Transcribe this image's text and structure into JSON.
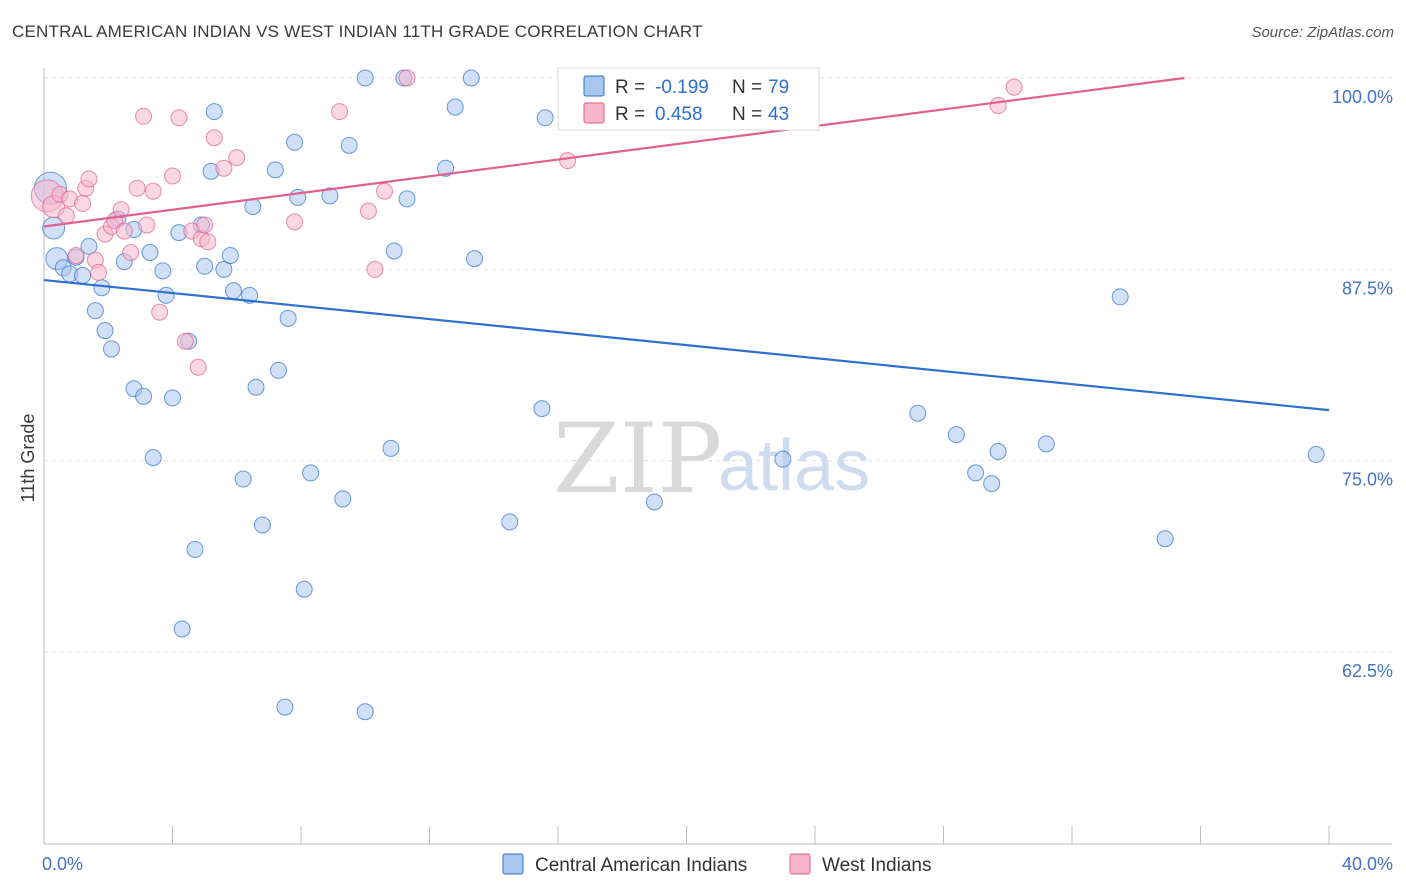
{
  "title": "CENTRAL AMERICAN INDIAN VS WEST INDIAN 11TH GRADE CORRELATION CHART",
  "source": "Source: ZipAtlas.com",
  "watermark": {
    "zip": "ZIP",
    "atlas": "atlas"
  },
  "colors": {
    "blue": "#2f6fce",
    "blue_fill": "#a9c6ee",
    "pink": "#e0608f",
    "pink_fill": "#f5b6ca",
    "tick": "#4472c4"
  },
  "chart_data": {
    "type": "scatter",
    "title": "CENTRAL AMERICAN INDIAN VS WEST INDIAN 11TH GRADE CORRELATION CHART",
    "xlabel": "",
    "ylabel": "11th Grade",
    "xlim": [
      0.0,
      40.0
    ],
    "ylim": [
      50.0,
      101.0
    ],
    "x_ticks": [
      {
        "value": 0.0,
        "label": "0.0%"
      },
      {
        "value": 40.0,
        "label": "40.0%"
      }
    ],
    "y_ticks": [
      {
        "value": 100.0,
        "label": "100.0%"
      },
      {
        "value": 87.5,
        "label": "87.5%"
      },
      {
        "value": 75.0,
        "label": "75.0%"
      },
      {
        "value": 62.5,
        "label": "62.5%"
      }
    ],
    "legend": [
      {
        "r_label": "R =",
        "r_value": "-0.199",
        "n_label": "N =",
        "n_value": "79"
      },
      {
        "r_label": "R =",
        "r_value": "0.458",
        "n_label": "N =",
        "n_value": "43"
      }
    ],
    "series": [
      {
        "name": "Central American Indians",
        "trend": {
          "x": [
            0.0,
            40.0
          ],
          "y": [
            86.8,
            78.3
          ]
        },
        "points": [
          [
            0.2,
            92.8
          ],
          [
            0.3,
            90.2
          ],
          [
            0.4,
            88.2
          ],
          [
            0.6,
            87.6
          ],
          [
            0.8,
            87.2
          ],
          [
            1.0,
            88.3
          ],
          [
            1.2,
            87.1
          ],
          [
            1.4,
            89.0
          ],
          [
            1.6,
            84.8
          ],
          [
            1.8,
            86.3
          ],
          [
            1.9,
            83.5
          ],
          [
            2.1,
            82.3
          ],
          [
            2.3,
            90.8
          ],
          [
            2.5,
            88.0
          ],
          [
            2.8,
            90.1
          ],
          [
            2.8,
            79.7
          ],
          [
            3.1,
            79.2
          ],
          [
            3.3,
            88.6
          ],
          [
            3.4,
            75.2
          ],
          [
            3.7,
            87.4
          ],
          [
            3.8,
            85.8
          ],
          [
            4.0,
            79.1
          ],
          [
            4.2,
            89.9
          ],
          [
            4.3,
            64.0
          ],
          [
            4.5,
            82.8
          ],
          [
            4.7,
            69.2
          ],
          [
            4.9,
            90.4
          ],
          [
            5.0,
            87.7
          ],
          [
            5.2,
            93.9
          ],
          [
            5.3,
            97.8
          ],
          [
            5.6,
            87.5
          ],
          [
            5.8,
            88.4
          ],
          [
            5.9,
            86.1
          ],
          [
            6.2,
            73.8
          ],
          [
            6.4,
            85.8
          ],
          [
            6.5,
            91.6
          ],
          [
            6.6,
            79.8
          ],
          [
            6.8,
            70.8
          ],
          [
            7.2,
            94.0
          ],
          [
            7.3,
            80.9
          ],
          [
            7.5,
            58.9
          ],
          [
            7.6,
            84.3
          ],
          [
            7.8,
            95.8
          ],
          [
            7.9,
            92.2
          ],
          [
            8.1,
            66.6
          ],
          [
            8.3,
            74.2
          ],
          [
            8.9,
            92.3
          ],
          [
            9.3,
            72.5
          ],
          [
            9.5,
            95.6
          ],
          [
            10.0,
            100.0
          ],
          [
            10.0,
            58.6
          ],
          [
            10.8,
            75.8
          ],
          [
            10.9,
            88.7
          ],
          [
            11.2,
            100.0
          ],
          [
            11.3,
            92.1
          ],
          [
            12.5,
            94.1
          ],
          [
            12.8,
            98.1
          ],
          [
            13.3,
            100.0
          ],
          [
            13.4,
            88.2
          ],
          [
            14.5,
            71.0
          ],
          [
            15.5,
            78.4
          ],
          [
            15.6,
            97.4
          ],
          [
            18.0,
            99.5
          ],
          [
            19.0,
            72.3
          ],
          [
            22.3,
            100.0
          ],
          [
            23.0,
            75.1
          ],
          [
            27.2,
            78.1
          ],
          [
            28.4,
            76.7
          ],
          [
            29.0,
            74.2
          ],
          [
            29.5,
            73.5
          ],
          [
            29.7,
            75.6
          ],
          [
            31.2,
            76.1
          ],
          [
            33.5,
            85.7
          ],
          [
            34.9,
            69.9
          ],
          [
            39.6,
            75.4
          ]
        ]
      },
      {
        "name": "West Indians",
        "trend": {
          "x": [
            0.0,
            35.5
          ],
          "y": [
            90.3,
            100.0
          ]
        },
        "points": [
          [
            0.1,
            92.3
          ],
          [
            0.3,
            91.6
          ],
          [
            0.5,
            92.4
          ],
          [
            0.7,
            91.0
          ],
          [
            0.8,
            92.1
          ],
          [
            1.0,
            88.4
          ],
          [
            1.2,
            91.8
          ],
          [
            1.3,
            92.8
          ],
          [
            1.4,
            93.4
          ],
          [
            1.6,
            88.1
          ],
          [
            1.7,
            87.3
          ],
          [
            1.9,
            89.8
          ],
          [
            2.1,
            90.3
          ],
          [
            2.2,
            90.7
          ],
          [
            2.4,
            91.4
          ],
          [
            2.5,
            90.0
          ],
          [
            2.7,
            88.6
          ],
          [
            2.9,
            92.8
          ],
          [
            3.1,
            97.5
          ],
          [
            3.2,
            90.4
          ],
          [
            3.4,
            92.6
          ],
          [
            3.6,
            84.7
          ],
          [
            4.0,
            93.6
          ],
          [
            4.2,
            97.4
          ],
          [
            4.4,
            82.8
          ],
          [
            4.6,
            90.0
          ],
          [
            4.8,
            81.1
          ],
          [
            4.9,
            89.5
          ],
          [
            5.0,
            90.4
          ],
          [
            5.1,
            89.3
          ],
          [
            5.3,
            96.1
          ],
          [
            5.6,
            94.1
          ],
          [
            6.0,
            94.8
          ],
          [
            7.8,
            90.6
          ],
          [
            9.2,
            97.8
          ],
          [
            10.1,
            91.3
          ],
          [
            10.3,
            87.5
          ],
          [
            10.6,
            92.6
          ],
          [
            11.3,
            100.0
          ],
          [
            16.3,
            94.6
          ],
          [
            29.7,
            98.2
          ],
          [
            30.2,
            99.4
          ]
        ]
      }
    ]
  }
}
